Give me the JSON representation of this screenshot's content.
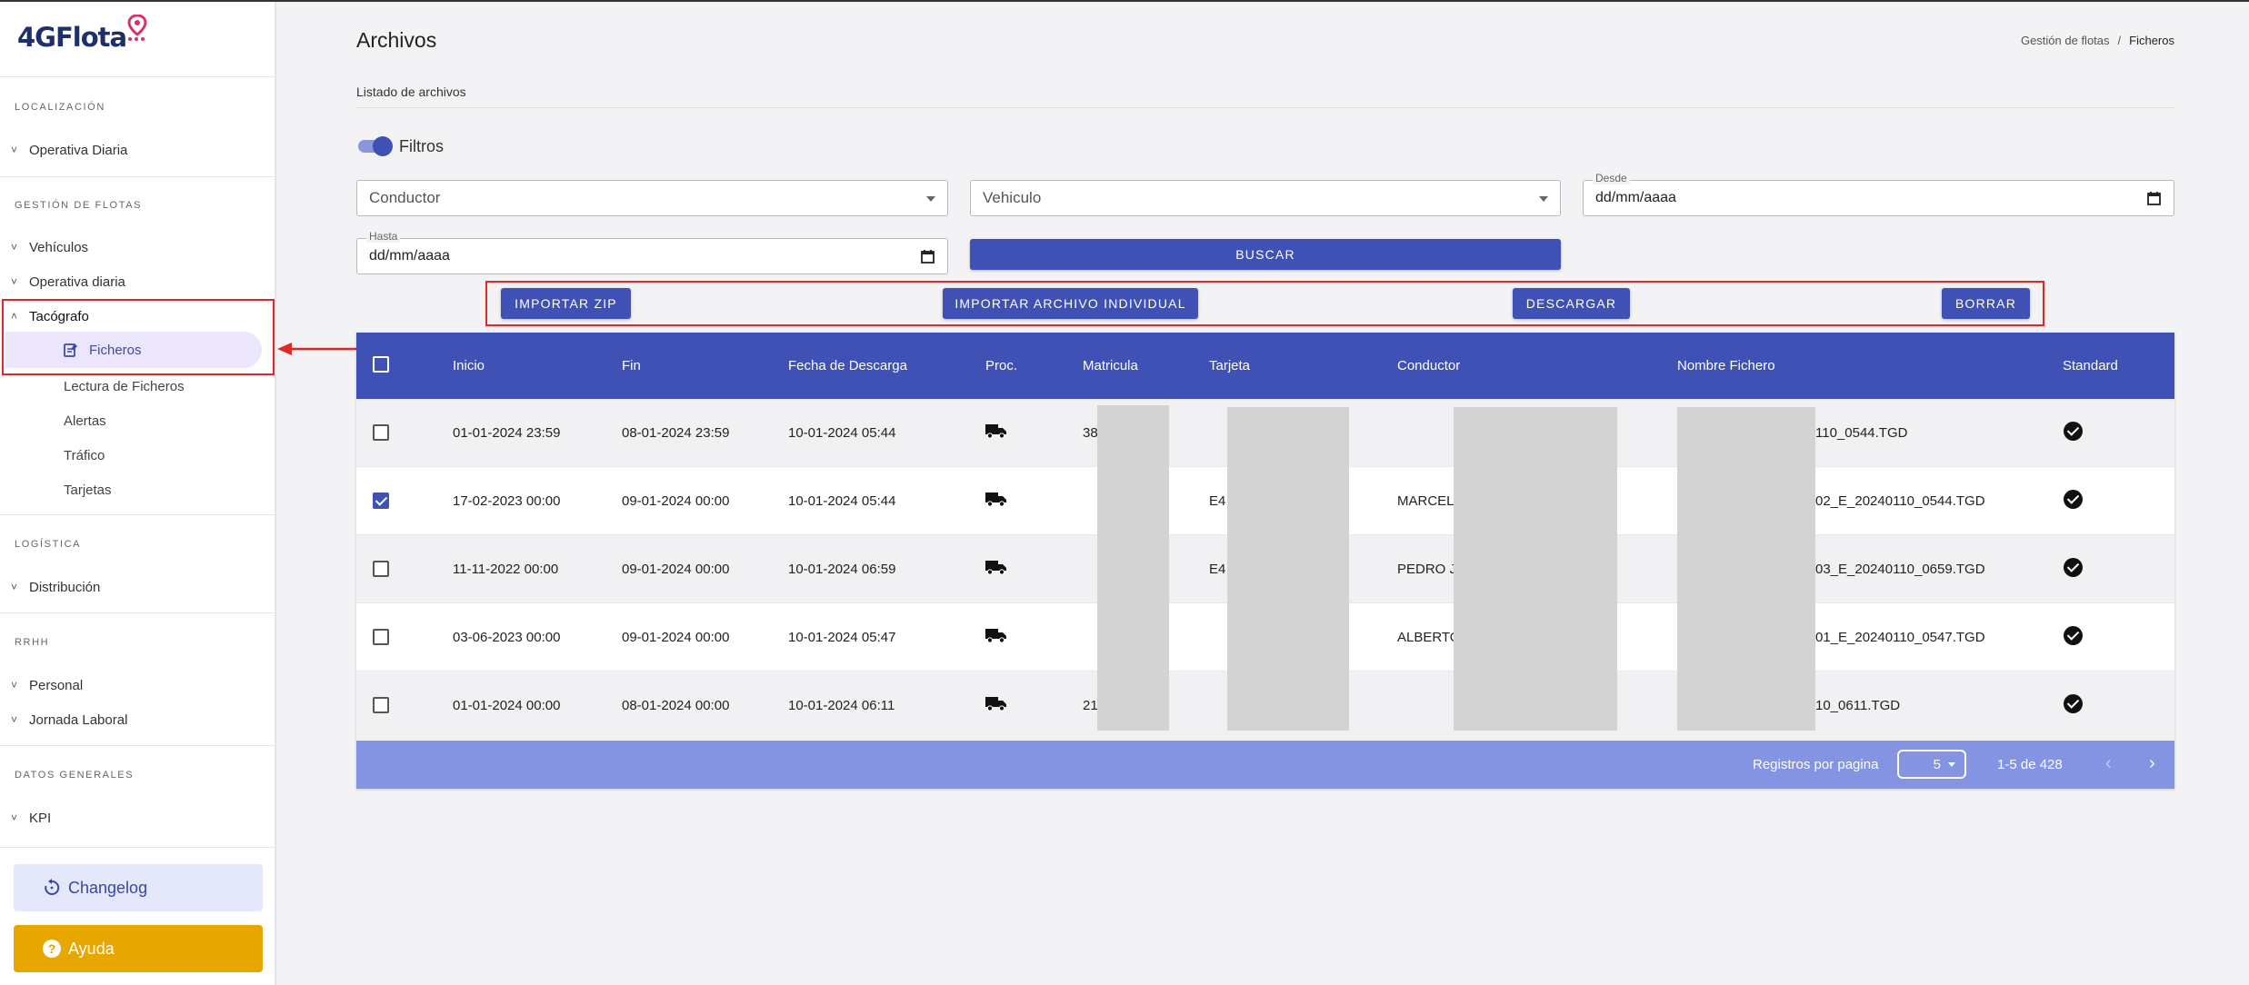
{
  "app": {
    "logo_text": "4GFlota",
    "brand_color": "#1f2f6b",
    "accent_color": "#3f51b5",
    "pin_color": "#d6336c"
  },
  "sidebar": {
    "sections": [
      {
        "label": "LOCALIZACIÓN"
      },
      {
        "label": "GESTIÓN DE FLOTAS"
      },
      {
        "label": "LOGÍSTICA"
      },
      {
        "label": "RRHH"
      },
      {
        "label": "DATOS GENERALES"
      }
    ],
    "items": [
      {
        "label": "Operativa Diaria",
        "chevron": "˅"
      },
      {
        "label": "Vehículos",
        "chevron": "˅"
      },
      {
        "label": "Operativa diaria",
        "chevron": "˅"
      },
      {
        "label": "Tacógrafo",
        "chevron": "˄"
      },
      {
        "label": "Distribución",
        "chevron": "˅"
      },
      {
        "label": "Personal",
        "chevron": "˅"
      },
      {
        "label": "Jornada Laboral",
        "chevron": "˅"
      },
      {
        "label": "KPI",
        "chevron": "˅"
      }
    ],
    "tacografo_sub": [
      "Ficheros",
      "Lectura de Ficheros",
      "Alertas",
      "Tráfico",
      "Tarjetas"
    ],
    "changelog_label": "Changelog",
    "ayuda_label": "Ayuda"
  },
  "header": {
    "title": "Archivos",
    "breadcrumb": [
      "Gestión de flotas",
      "/",
      "Ficheros"
    ],
    "subtitle": "Listado de archivos"
  },
  "filters": {
    "toggle_label": "Filtros",
    "toggle_on": true,
    "conductor_placeholder": "Conductor",
    "vehiculo_placeholder": "Vehiculo",
    "desde_label": "Desde",
    "desde_value": "dd/mm/aaaa",
    "hasta_label": "Hasta",
    "hasta_value": "dd/mm/aaaa",
    "buscar_label": "BUSCAR"
  },
  "actions": {
    "importar_zip": "IMPORTAR ZIP",
    "importar_individual": "IMPORTAR ARCHIVO INDIVIDUAL",
    "descargar": "DESCARGAR",
    "borrar": "BORRAR"
  },
  "table": {
    "columns": [
      "Inicio",
      "Fin",
      "Fecha de Descarga",
      "Proc.",
      "Matricula",
      "Tarjeta",
      "Conductor",
      "Nombre Fichero",
      "Standard"
    ],
    "rows": [
      {
        "checked": false,
        "inicio": "01-01-2024 23:59",
        "fin": "08-01-2024 23:59",
        "descarga": "10-01-2024 05:44",
        "matricula": "38",
        "tarjeta": "",
        "conductor": "",
        "fichero": "110_0544.TGD"
      },
      {
        "checked": true,
        "inicio": "17-02-2023 00:00",
        "fin": "09-01-2024 00:00",
        "descarga": "10-01-2024 05:44",
        "matricula": "",
        "tarjeta": "E4",
        "conductor": "MARCEL",
        "fichero": "02_E_20240110_0544.TGD"
      },
      {
        "checked": false,
        "inicio": "11-11-2022 00:00",
        "fin": "09-01-2024 00:00",
        "descarga": "10-01-2024 06:59",
        "matricula": "",
        "tarjeta": "E4",
        "conductor": "PEDRO J",
        "fichero": "03_E_20240110_0659.TGD"
      },
      {
        "checked": false,
        "inicio": "03-06-2023 00:00",
        "fin": "09-01-2024 00:00",
        "descarga": "10-01-2024 05:47",
        "matricula": "",
        "tarjeta": "",
        "conductor": "ALBERTO",
        "fichero": "01_E_20240110_0547.TGD"
      },
      {
        "checked": false,
        "inicio": "01-01-2024 00:00",
        "fin": "08-01-2024 00:00",
        "descarga": "10-01-2024 06:11",
        "matricula": "21",
        "tarjeta": "",
        "conductor": "",
        "fichero": "10_0611.TGD"
      }
    ],
    "footer": {
      "rows_per_page_label": "Registros por pagina",
      "rows_per_page_value": "5",
      "range_label": "1-5 de 428",
      "prev_icon": "‹",
      "next_icon": "›"
    }
  }
}
